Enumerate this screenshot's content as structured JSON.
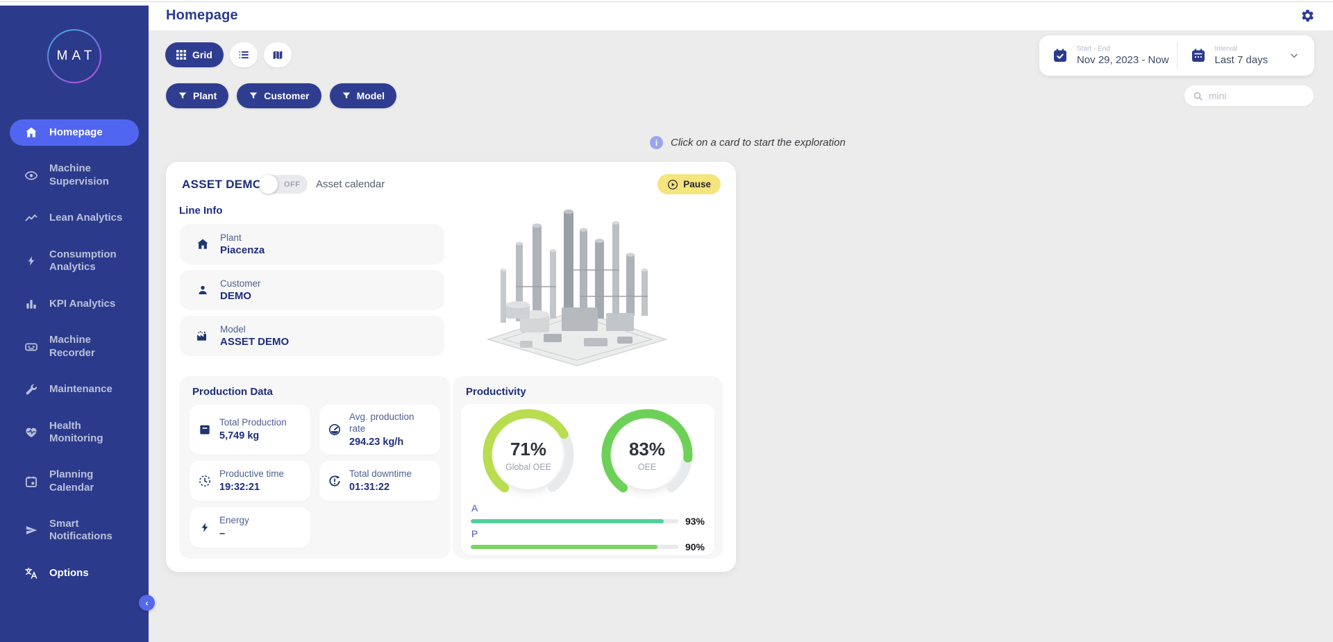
{
  "header": {
    "title": "Homepage",
    "gear_icon": "settings-gear-icon"
  },
  "sidebar": {
    "logo_text": "MAT",
    "items": [
      {
        "label": "Homepage",
        "icon": "home-icon",
        "active": true
      },
      {
        "label": "Machine Supervision",
        "icon": "eye-icon"
      },
      {
        "label": "Lean Analytics",
        "icon": "line-chart-icon"
      },
      {
        "label": "Consumption Analytics",
        "icon": "lightning-icon"
      },
      {
        "label": "KPI Analytics",
        "icon": "bar-chart-icon"
      },
      {
        "label": "Machine Recorder",
        "icon": "recorder-icon"
      },
      {
        "label": "Maintenance",
        "icon": "wrench-icon"
      },
      {
        "label": "Health Monitoring",
        "icon": "heart-pulse-icon"
      },
      {
        "label": "Planning Calendar",
        "icon": "calendar-icon"
      },
      {
        "label": "Smart Notifications",
        "icon": "send-icon"
      },
      {
        "label": "Options",
        "icon": "translate-icon"
      }
    ],
    "collapse_icon": "chevron-left-icon",
    "collapse_glyph": "‹"
  },
  "toolbar": {
    "view_grid_label": "Grid",
    "filters": [
      {
        "label": "Plant"
      },
      {
        "label": "Customer"
      },
      {
        "label": "Model"
      }
    ],
    "date_range": {
      "label": "Start - End",
      "value": "Nov 29, 2023 - Now"
    },
    "interval": {
      "label": "Interval",
      "value": "Last 7 days"
    },
    "search_value": "mini"
  },
  "hint": {
    "icon_glyph": "i",
    "text": "Click on a card to start the exploration"
  },
  "asset_card": {
    "title": "ASSET DEMO",
    "toggle_state": "OFF",
    "toggle_label": "Asset calendar",
    "pause_label": "Pause",
    "line_info": {
      "heading": "Line Info",
      "rows": [
        {
          "label": "Plant",
          "value": "Piacenza",
          "icon": "home-icon"
        },
        {
          "label": "Customer",
          "value": "DEMO",
          "icon": "person-icon"
        },
        {
          "label": "Model",
          "value": "ASSET DEMO",
          "icon": "factory-icon"
        }
      ]
    },
    "production": {
      "heading": "Production Data",
      "tiles": [
        {
          "label": "Total Production",
          "value": "5,749 kg",
          "icon": "box-icon"
        },
        {
          "label": "Avg. production rate",
          "value": "294.23 kg/h",
          "icon": "speedometer-icon"
        },
        {
          "label": "Productive time",
          "value": "19:32:21",
          "icon": "clock-dashed-icon"
        },
        {
          "label": "Total downtime",
          "value": "01:31:22",
          "icon": "downtime-icon"
        },
        {
          "label": "Energy",
          "value": "–",
          "icon": "energy-icon"
        }
      ]
    },
    "productivity": {
      "heading": "Productivity",
      "gauges": [
        {
          "value": 71,
          "display": "71%",
          "label": "Global OEE",
          "color": "#b8dd4e"
        },
        {
          "value": 83,
          "display": "83%",
          "label": "OEE",
          "color": "#6ed157"
        }
      ],
      "bars": [
        {
          "label": "A",
          "value": 93,
          "display": "93%",
          "color": "#53cf9c"
        },
        {
          "label": "P",
          "value": 90,
          "display": "90%",
          "color": "#78d75d"
        }
      ]
    }
  },
  "colors": {
    "sidebar_bg": "#2c3a8c",
    "active_item": "#5166f0",
    "accent_blue": "#2e3d90",
    "pause_yellow": "#f6e47c",
    "content_bg": "#ececec",
    "heading_blue": "#1d2d7d"
  }
}
